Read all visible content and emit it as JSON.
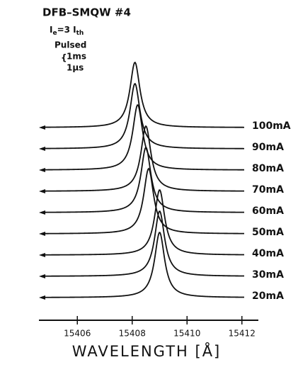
{
  "chart_data": {
    "type": "waterfall",
    "annotations": {
      "device": "DFB–SMQW #4",
      "condition": [
        "I",
        "e",
        "=3 I",
        "th"
      ],
      "mode": "Pulsed",
      "pulse": [
        "1ms",
        "1μs"
      ]
    },
    "xlabel": "WAVELENGTH [Å]",
    "xlim": [
      15404.6,
      15412.6
    ],
    "xticks": [
      15406,
      15408,
      15410,
      15412
    ],
    "color": "#111111",
    "series": [
      {
        "name": "100mA",
        "peak": 15408.1
      },
      {
        "name": "90mA",
        "peak": 15408.1
      },
      {
        "name": "80mA",
        "peak": 15408.2
      },
      {
        "name": "70mA",
        "peak": 15408.5
      },
      {
        "name": "60mA",
        "peak": 15408.5
      },
      {
        "name": "50mA",
        "peak": 15408.6
      },
      {
        "name": "40mA",
        "peak": 15409.0
      },
      {
        "name": "30mA",
        "peak": 15409.0
      },
      {
        "name": "20mA",
        "peak": 15409.0
      }
    ]
  }
}
